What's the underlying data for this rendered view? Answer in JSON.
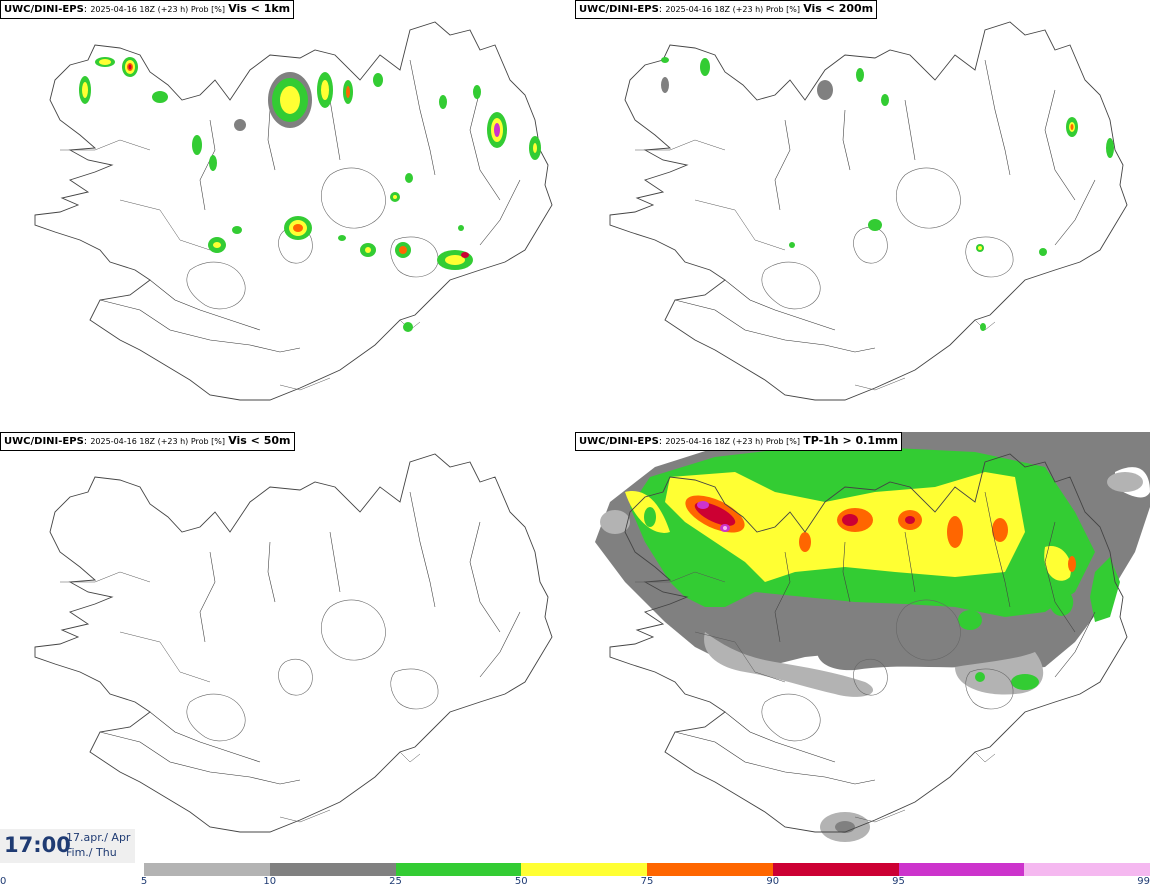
{
  "panels": [
    {
      "model": "UWC/DINI-EPS",
      "run": "2025-04-16 18Z (+23 h) Prob [%]",
      "variable": "Vis < 1km"
    },
    {
      "model": "UWC/DINI-EPS",
      "run": "2025-04-16 18Z (+23 h) Prob [%]",
      "variable": "Vis < 200m"
    },
    {
      "model": "UWC/DINI-EPS",
      "run": "2025-04-16 18Z (+23 h) Prob [%]",
      "variable": "Vis < 50m"
    },
    {
      "model": "UWC/DINI-EPS",
      "run": "2025-04-16 18Z (+23 h) Prob [%]",
      "variable": "TP-1h > 0.1mm"
    }
  ],
  "time": {
    "clock": "17:00",
    "date_line1": "17.apr./ Apr",
    "date_line2": "Fim./ Thu"
  },
  "legend": {
    "ticks": [
      "0",
      "5",
      "10",
      "25",
      "50",
      "75",
      "90",
      "95",
      "99"
    ],
    "colors": [
      "#b3b3b3",
      "#808080",
      "#33cc33",
      "#ffff33",
      "#ff6600",
      "#cc0033",
      "#cc33cc",
      "#f5b8f0"
    ]
  }
}
